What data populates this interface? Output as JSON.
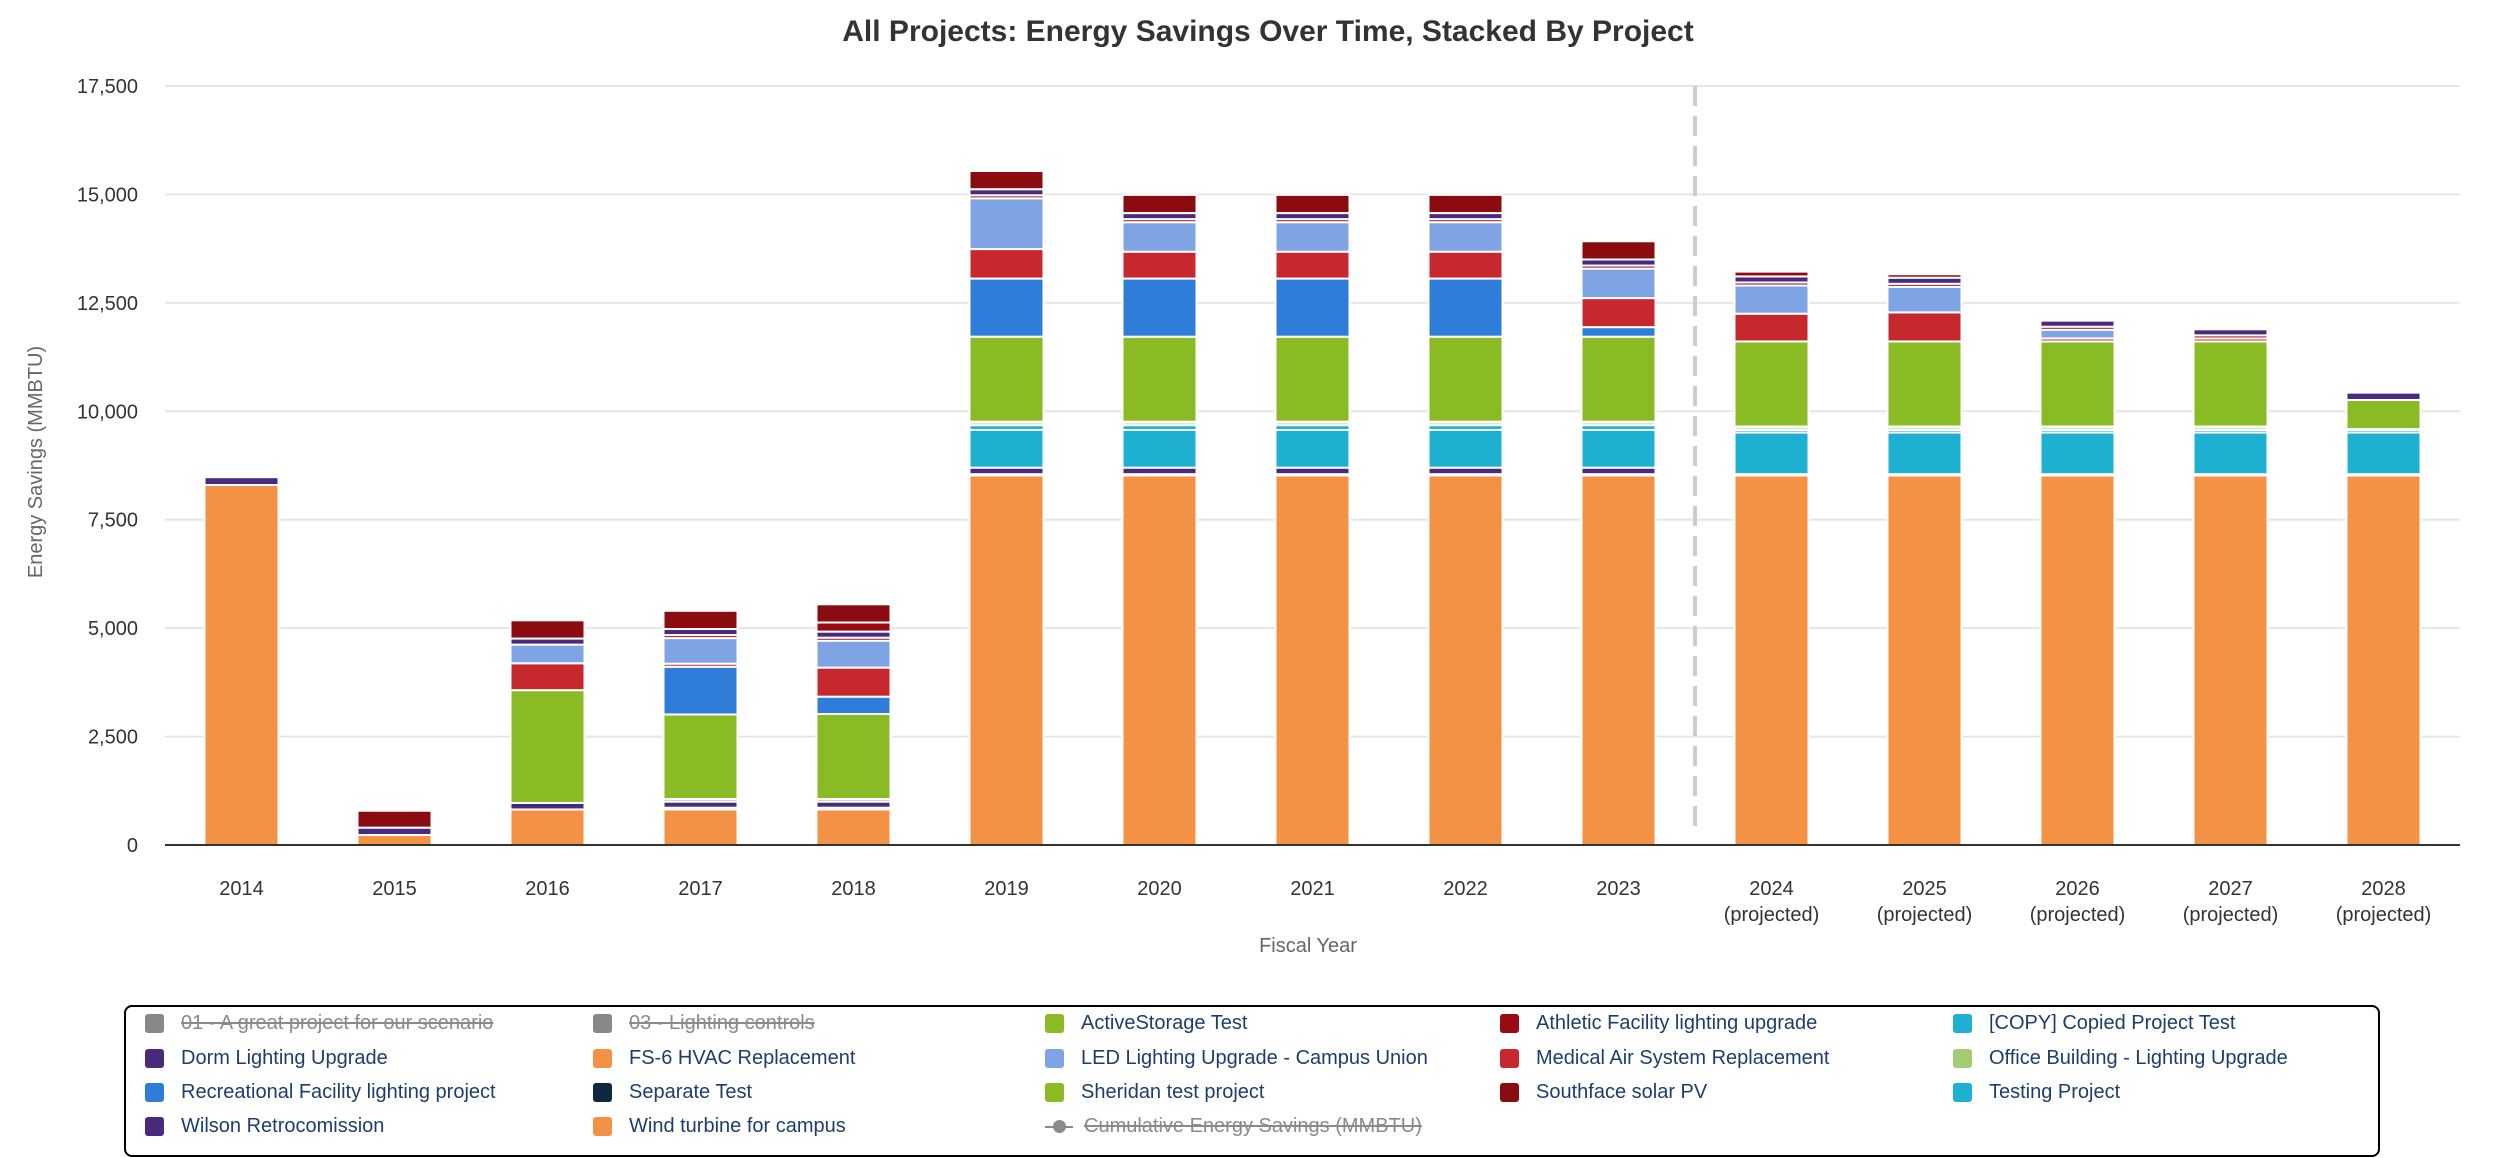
{
  "chart_data": {
    "type": "bar",
    "stacked": true,
    "title": "All Projects: Energy Savings Over Time, Stacked By Project",
    "xlabel": "Fiscal Year",
    "ylabel": "Energy Savings (MMBTU)",
    "ylim": [
      0,
      17500
    ],
    "yticks": [
      "0",
      "2,500",
      "5,000",
      "7,500",
      "10,000",
      "12,500",
      "15,000",
      "17,500"
    ],
    "grid": true,
    "projection_divider_after": "2023",
    "categories": [
      [
        "2014"
      ],
      [
        "2015"
      ],
      [
        "2016"
      ],
      [
        "2017"
      ],
      [
        "2018"
      ],
      [
        "2019"
      ],
      [
        "2020"
      ],
      [
        "2021"
      ],
      [
        "2022"
      ],
      [
        "2023"
      ],
      [
        "2024",
        "(projected)"
      ],
      [
        "2025",
        "(projected)"
      ],
      [
        "2026",
        "(projected)"
      ],
      [
        "2027",
        "(projected)"
      ],
      [
        "2028",
        "(projected)"
      ]
    ],
    "series": [
      {
        "name": "Wind turbine for campus",
        "color": "#f39244",
        "values": [
          8300,
          230,
          820,
          820,
          820,
          8520,
          8520,
          8520,
          8520,
          8520,
          8520,
          8520,
          8520,
          8520,
          8520
        ]
      },
      {
        "name": "Separate Test",
        "color": "#0e2841",
        "values": [
          0,
          0,
          0,
          40,
          40,
          30,
          30,
          30,
          30,
          30,
          30,
          30,
          30,
          30,
          30
        ]
      },
      {
        "name": "Dorm Lighting Upgrade",
        "color": "#4b2a7b",
        "values": [
          0,
          0,
          150,
          140,
          140,
          150,
          150,
          150,
          150,
          150,
          0,
          0,
          0,
          0,
          0
        ]
      },
      {
        "name": "Testing Project",
        "color": "#1eb0d0",
        "values": [
          0,
          0,
          0,
          0,
          0,
          870,
          870,
          870,
          870,
          870,
          960,
          960,
          960,
          960,
          960
        ]
      },
      {
        "name": "[COPY] Copied Project Test",
        "color": "#1eb0d0",
        "values": [
          0,
          0,
          0,
          0,
          0,
          110,
          110,
          110,
          110,
          110,
          60,
          60,
          60,
          60,
          60
        ]
      },
      {
        "name": "Office Building - Lighting Upgrade",
        "color": "#a6cc73",
        "values": [
          0,
          0,
          0,
          60,
          60,
          60,
          60,
          60,
          60,
          60,
          60,
          60,
          60,
          60,
          0
        ]
      },
      {
        "name": "ActiveStorage Test",
        "color": "#8bbb24",
        "values": [
          0,
          0,
          0,
          0,
          0,
          20,
          20,
          20,
          20,
          20,
          20,
          20,
          20,
          20,
          20
        ]
      },
      {
        "name": "Sheridan test project",
        "color": "#8bbb24",
        "values": [
          0,
          0,
          2600,
          1950,
          1960,
          1960,
          1960,
          1960,
          1960,
          1960,
          1960,
          1960,
          1960,
          1960,
          670
        ]
      },
      {
        "name": "Recreational Facility lighting project",
        "color": "#2f7dd9",
        "values": [
          0,
          0,
          0,
          1100,
          400,
          1340,
          1340,
          1340,
          1340,
          220,
          0,
          0,
          0,
          0,
          0
        ]
      },
      {
        "name": "Medical Air System Replacement",
        "color": "#c7282d",
        "values": [
          0,
          0,
          620,
          70,
          670,
          680,
          620,
          620,
          620,
          670,
          640,
          670,
          70,
          70,
          0
        ]
      },
      {
        "name": "LED Lighting Upgrade - Campus Union",
        "color": "#7fa4e3",
        "values": [
          0,
          0,
          430,
          590,
          620,
          1170,
          680,
          680,
          680,
          680,
          650,
          590,
          200,
          0,
          0
        ]
      },
      {
        "name": "Athletic Facility lighting upgrade",
        "color": "#9b0a12",
        "values": [
          0,
          0,
          0,
          70,
          70,
          70,
          70,
          70,
          70,
          70,
          70,
          70,
          70,
          70,
          0
        ]
      },
      {
        "name": "Wilson Retrocomission",
        "color": "#4b2a7b",
        "values": [
          180,
          170,
          140,
          140,
          140,
          140,
          140,
          140,
          140,
          140,
          140,
          140,
          140,
          140,
          170
        ]
      },
      {
        "name": "Athletic Facility lighting upgrade",
        "color": "#9b0a12",
        "values": [
          0,
          0,
          0,
          0,
          210,
          0,
          0,
          0,
          0,
          0,
          0,
          0,
          0,
          0,
          0
        ]
      },
      {
        "name": "Southface solar PV",
        "color": "#8b0c10",
        "values": [
          0,
          390,
          420,
          420,
          420,
          420,
          420,
          420,
          420,
          420,
          110,
          80,
          0,
          0,
          0
        ]
      },
      {
        "name": "FS-6 HVAC Replacement",
        "color": "#f39244",
        "values": [
          0,
          0,
          0,
          0,
          0,
          0,
          0,
          0,
          0,
          0,
          0,
          0,
          0,
          0,
          0
        ]
      }
    ]
  },
  "legend": [
    {
      "label": "01 - A great project for our scenario",
      "color": "#888888",
      "hidden": true
    },
    {
      "label": "03 - Lighting controls",
      "color": "#888888",
      "hidden": true
    },
    {
      "label": "ActiveStorage Test",
      "color": "#8bbb24",
      "hidden": false
    },
    {
      "label": "Athletic Facility lighting upgrade",
      "color": "#9b0a12",
      "hidden": false
    },
    {
      "label": "[COPY] Copied Project Test",
      "color": "#1eb0d0",
      "hidden": false
    },
    {
      "label": "Dorm Lighting Upgrade",
      "color": "#4b2a7b",
      "hidden": false
    },
    {
      "label": "FS-6 HVAC Replacement",
      "color": "#f39244",
      "hidden": false
    },
    {
      "label": "LED Lighting Upgrade - Campus Union",
      "color": "#7fa4e3",
      "hidden": false
    },
    {
      "label": "Medical Air System Replacement",
      "color": "#c7282d",
      "hidden": false
    },
    {
      "label": "Office Building - Lighting Upgrade",
      "color": "#a6cc73",
      "hidden": false
    },
    {
      "label": "Recreational Facility lighting project",
      "color": "#2f7dd9",
      "hidden": false
    },
    {
      "label": "Separate Test",
      "color": "#0e2841",
      "hidden": false
    },
    {
      "label": "Sheridan test project",
      "color": "#8bbb24",
      "hidden": false
    },
    {
      "label": "Southface solar PV",
      "color": "#8b0c10",
      "hidden": false
    },
    {
      "label": "Testing Project",
      "color": "#1eb0d0",
      "hidden": false
    },
    {
      "label": "Wilson Retrocomission",
      "color": "#4b2a7b",
      "hidden": false
    },
    {
      "label": "Wind turbine for campus",
      "color": "#f39244",
      "hidden": false
    },
    {
      "label": "Cumulative Energy Savings (MMBTU)",
      "color": "#8a8a8a",
      "hidden": true,
      "marker": "line"
    }
  ]
}
